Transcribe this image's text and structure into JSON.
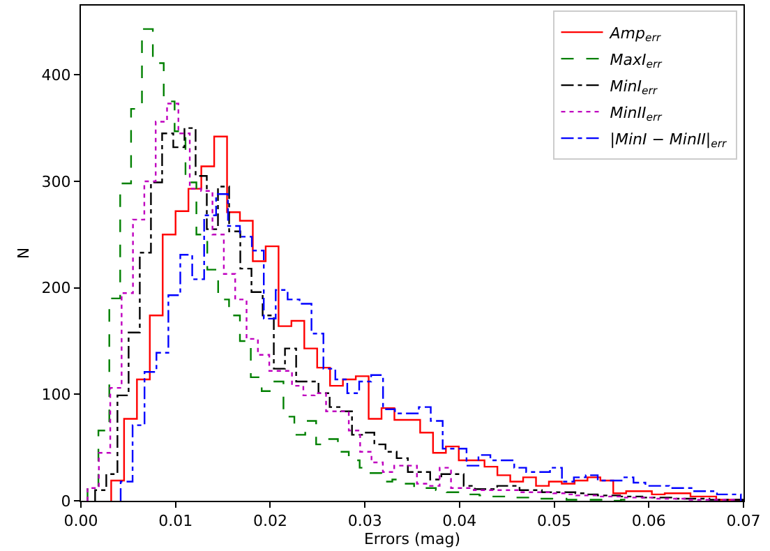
{
  "chart_data": {
    "type": "step",
    "xlabel": "Errors (mag)",
    "ylabel": "N",
    "legend": "top right",
    "marker": "none",
    "xlim": [
      0,
      0.07
    ],
    "xticks": [
      {
        "value": 0,
        "label": "0.00"
      },
      {
        "value": 0.01,
        "label": "0.01"
      },
      {
        "value": 0.02,
        "label": "0.02"
      },
      {
        "value": 0.03,
        "label": "0.03"
      },
      {
        "value": 0.04,
        "label": "0.04"
      },
      {
        "value": 0.05,
        "label": "0.05"
      },
      {
        "value": 0.06,
        "label": "0.06"
      },
      {
        "value": 0.07,
        "label": "0.07"
      }
    ],
    "ylim": [
      0,
      465
    ],
    "yticks": [
      0,
      100,
      200,
      300,
      400
    ],
    "series": [
      {
        "name": "Amp$_{err}$",
        "color": "#ff0000",
        "line_style": "solid",
        "x": [
          0.0032,
          0.0032,
          0.00456,
          0.00592,
          0.00728,
          0.00864,
          0.01,
          0.01136,
          0.01272,
          0.01408,
          0.01544,
          0.0168,
          0.01816,
          0.01952,
          0.02088,
          0.02224,
          0.0236,
          0.02496,
          0.02632,
          0.02768,
          0.02904,
          0.0304,
          0.03176,
          0.03312,
          0.03448,
          0.03584,
          0.0372,
          0.03856,
          0.03992,
          0.04128,
          0.04264,
          0.044,
          0.04536,
          0.04672,
          0.04808,
          0.04944,
          0.0508,
          0.05216,
          0.05352,
          0.05488,
          0.05624,
          0.0576,
          0.05896,
          0.06032,
          0.06168,
          0.06304,
          0.0644,
          0.06576,
          0.06712,
          0.06848,
          0.06984
        ],
        "values": [
          0,
          19,
          77,
          114,
          174,
          250,
          272,
          293,
          314,
          342,
          271,
          263,
          225,
          239,
          164,
          169,
          143,
          125,
          108,
          114,
          117,
          77,
          87,
          76,
          76,
          64,
          45,
          51,
          38,
          38,
          32,
          24,
          18,
          22,
          14,
          18,
          16,
          19,
          22,
          19,
          7,
          9,
          9,
          6,
          7,
          7,
          4,
          4,
          1,
          1,
          0
        ]
      },
      {
        "name": "MaxI$_{err}$",
        "color": "#008000",
        "line_style": "dashed",
        "x": [
          0.0007,
          0.0007,
          0.00185,
          0.003,
          0.00415,
          0.0053,
          0.00645,
          0.0076,
          0.00875,
          0.0099,
          0.01105,
          0.0122,
          0.01335,
          0.0145,
          0.01565,
          0.0168,
          0.01795,
          0.0191,
          0.02025,
          0.0214,
          0.02255,
          0.0237,
          0.02485,
          0.026,
          0.02715,
          0.0283,
          0.02945,
          0.0306,
          0.03175,
          0.0329,
          0.03405,
          0.0352,
          0.03635,
          0.0375,
          0.03865,
          0.0398,
          0.04095,
          0.0421,
          0.04325,
          0.0444,
          0.04555,
          0.0467,
          0.04785,
          0.049,
          0.05015,
          0.0513,
          0.05245,
          0.0536,
          0.05475,
          0.0559,
          0.05705,
          0.0582
        ],
        "values": [
          0,
          13,
          66,
          190,
          298,
          368,
          443,
          411,
          375,
          347,
          299,
          250,
          217,
          189,
          174,
          150,
          116,
          103,
          112,
          79,
          62,
          75,
          53,
          58,
          46,
          38,
          31,
          26,
          18,
          20,
          16,
          12,
          12,
          10,
          8,
          8,
          6,
          5,
          4,
          4,
          3,
          3,
          2,
          2,
          2,
          1,
          1,
          1,
          1,
          0,
          1,
          0
        ]
      },
      {
        "name": "MinI$_{err}$",
        "color": "#000000",
        "line_style": "dashdot",
        "x": [
          0.0015,
          0.0015,
          0.00268,
          0.00386,
          0.00504,
          0.00622,
          0.0074,
          0.00858,
          0.00976,
          0.01094,
          0.01212,
          0.0133,
          0.01448,
          0.01566,
          0.01684,
          0.01802,
          0.0192,
          0.02038,
          0.02156,
          0.02274,
          0.02392,
          0.0251,
          0.02628,
          0.02746,
          0.02864,
          0.02982,
          0.031,
          0.03218,
          0.03336,
          0.03454,
          0.03572,
          0.0369,
          0.03808,
          0.03926,
          0.04044,
          0.04162,
          0.0428,
          0.04398,
          0.04516,
          0.04634,
          0.04752,
          0.0487,
          0.04988,
          0.05106,
          0.05224,
          0.05342,
          0.0546,
          0.05578,
          0.05696,
          0.05814,
          0.05932,
          0.0605,
          0.06168,
          0.06286,
          0.06404,
          0.06522,
          0.0664,
          0.06758,
          0.06876,
          0.06994
        ],
        "values": [
          0,
          10,
          25,
          99,
          158,
          233,
          299,
          345,
          332,
          350,
          305,
          255,
          295,
          253,
          218,
          196,
          174,
          124,
          143,
          112,
          112,
          101,
          88,
          84,
          62,
          64,
          53,
          46,
          40,
          27,
          27,
          20,
          25,
          25,
          14,
          11,
          11,
          14,
          14,
          10,
          10,
          8,
          8,
          8,
          7,
          6,
          5,
          5,
          4,
          4,
          3,
          3,
          3,
          2,
          2,
          2,
          1,
          1,
          1,
          0
        ]
      },
      {
        "name": "MinII$_{err}$",
        "color": "#bf00bf",
        "line_style": "dotted",
        "x": [
          0.0007,
          0.0007,
          0.0019,
          0.0031,
          0.0043,
          0.0055,
          0.0067,
          0.0079,
          0.0091,
          0.0103,
          0.0115,
          0.0127,
          0.0139,
          0.0151,
          0.0163,
          0.0175,
          0.0187,
          0.0199,
          0.0211,
          0.0223,
          0.0235,
          0.0247,
          0.0259,
          0.0271,
          0.0283,
          0.0295,
          0.0307,
          0.0319,
          0.0331,
          0.0343,
          0.0355,
          0.0367,
          0.0379,
          0.0391,
          0.0403,
          0.0415,
          0.0427,
          0.0439,
          0.0451,
          0.0463,
          0.0475,
          0.0487,
          0.0499,
          0.0511,
          0.0523,
          0.0535,
          0.0547,
          0.0559,
          0.0571,
          0.0583,
          0.0595,
          0.0607,
          0.0619,
          0.0631,
          0.0643,
          0.0655,
          0.0667,
          0.0679,
          0.0691
        ],
        "values": [
          0,
          12,
          45,
          106,
          195,
          264,
          300,
          356,
          373,
          345,
          293,
          291,
          250,
          213,
          189,
          152,
          137,
          122,
          122,
          108,
          99,
          101,
          84,
          84,
          66,
          46,
          36,
          27,
          33,
          33,
          16,
          14,
          31,
          12,
          12,
          10,
          10,
          10,
          10,
          8,
          8,
          8,
          7,
          6,
          5,
          5,
          4,
          4,
          3,
          3,
          3,
          2,
          2,
          2,
          1,
          1,
          1,
          1,
          0
        ]
      },
      {
        "name": "|MinI − MinII|$_{err}$",
        "color": "#0000ff",
        "line_style": "dashdot",
        "x": [
          0.0042,
          0.0042,
          0.00546,
          0.00672,
          0.00798,
          0.00924,
          0.0105,
          0.01176,
          0.01302,
          0.01428,
          0.01554,
          0.0168,
          0.01806,
          0.01932,
          0.02058,
          0.02184,
          0.0231,
          0.02436,
          0.02562,
          0.02688,
          0.02814,
          0.0294,
          0.03066,
          0.03192,
          0.03318,
          0.03444,
          0.0357,
          0.03696,
          0.03822,
          0.03948,
          0.04074,
          0.042,
          0.04326,
          0.04452,
          0.04578,
          0.04704,
          0.0483,
          0.04956,
          0.05082,
          0.05208,
          0.05334,
          0.0546,
          0.05586,
          0.05712,
          0.05838,
          0.05964,
          0.0609,
          0.06216,
          0.06342,
          0.06468,
          0.06594,
          0.0672,
          0.06846,
          0.06972
        ],
        "values": [
          0,
          18,
          71,
          121,
          139,
          193,
          231,
          208,
          268,
          288,
          258,
          248,
          235,
          171,
          198,
          189,
          185,
          157,
          124,
          114,
          101,
          112,
          118,
          86,
          82,
          82,
          88,
          75,
          49,
          49,
          33,
          43,
          38,
          38,
          31,
          27,
          27,
          31,
          18,
          22,
          24,
          19,
          19,
          22,
          17,
          14,
          14,
          12,
          12,
          9,
          9,
          6,
          6,
          0
        ]
      }
    ]
  }
}
